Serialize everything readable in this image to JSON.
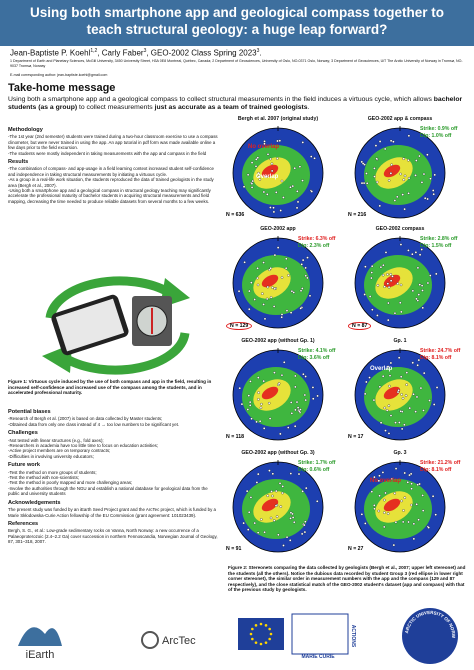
{
  "header": {
    "title": "Using both smartphone app and geological compass together to teach structural geology: a huge leap forward?",
    "authors": [
      {
        "name": "Jean-Baptiste P. Koehl",
        "sup": "1,2",
        "sep": ", "
      },
      {
        "name": "Carly Faber",
        "sup": "3",
        "sep": ", "
      },
      {
        "name": "GEO-2002 Class Spring 2023",
        "sup": "3",
        "sep": "."
      }
    ],
    "affiliations": "1 Department of Earth and Planetary Sciences, McGill University, 3450 University Street, H3A 0E8 Montreal, Québec, Canada; 2 Department of Geosciences, University of Oslo, NO-0371 Oslo, Norway; 3 Department of Geosciences, UiT The Arctic University of Norway in Tromsø, NO-9037 Tromsø, Norway",
    "email": "E-mail corresponding author: jean-baptiste.koehl@gmail.com"
  },
  "take_home": {
    "heading": "Take-home message",
    "runs": [
      {
        "text": "Using both a smartphone app and a geological compass to collect structural measurements in the field induces a virtuous cycle, which allows "
      },
      {
        "text": "bachelor students (as a group)",
        "bold": true
      },
      {
        "text": " to collect measurements "
      },
      {
        "text": "just as accurate as a team of trained geologists",
        "bold": true
      },
      {
        "text": "."
      }
    ]
  },
  "sections_top": [
    {
      "heading": "Methodology",
      "paragraphs": [
        "-The 1st year (2nd semester) students were trained during a two-hour classroom exercise to use a compass clinometer, but were never trained in using the app. An app tutorial in pdf form was made available online a few days prior to the field excursion.",
        "-The students were mostly independent in taking measurements with the app and compass in the field"
      ]
    },
    {
      "heading": "Results",
      "paragraphs": [
        "-The combination of compass- and app-usage in a field learning context increased student self-confidence and independence in taking structural measurements by initiating a virtuous cycle.",
        "-As a group in a real-life work situation, the students reproduced the data of trained geologists in the study area (Bergh et al., 2007).",
        "-Using both a smartphone app and a geological compass in structural geology teaching may significantly accelerate the professional maturity of bachelor students in acquiring structural measurements and field mapping, decreasing the time needed to produce reliable datasets from several months to a few weeks."
      ]
    }
  ],
  "figure1_caption": "Figure 1: Virtuous cycle induced by the use of both compass and app in the field, resulting in increased self-confidence and increased use of the compass among the students, and in accelerated professional maturity.",
  "sections_bottom": [
    {
      "heading": "Potential biases",
      "paragraphs": [
        "-Research of Bergh et al. (2007) is based on data collected by Master students;",
        "-Obtained data from only one class instead of 4 → too low numbers to be significant yet."
      ]
    },
    {
      "heading": "Challenges",
      "paragraphs": [
        "-Not tested with linear structures (e.g., fold axes);",
        "-Researchers in academia have too little time to focus on education activities;",
        "-Active project members are on temporary contracts;",
        "-Difficulties in involving university educators;"
      ]
    },
    {
      "heading": "Future work",
      "paragraphs": [
        "-Test the method on more groups of students;",
        "-Test the method with non-scientists;",
        "-Test the method in poorly mapped and more challenging areas;",
        "-Involve the authorities through the NGU and establish a national database for geological data from the public and university students"
      ]
    },
    {
      "heading": "Acknowledgements",
      "paragraphs": [
        "The present study was funded by an iEarth Seed Project grant and the ArcTec project, which is funded by a Marie Skłodowska-Curie Action fellowship of the EU Commission (grant agreement: 101023439)."
      ]
    },
    {
      "heading": "References",
      "paragraphs": [
        "Bergh, S. G., et al.: Low-grade sedimentary rocks on Vanna, North Norway: a new occurrence of a Palaeoproterozoic (2.4–2.2 Ga) cover succession in northern Fennoscandia, Norwegian Journal of Geology, 87, 301–318, 2007."
      ]
    }
  ],
  "stereonets": [
    {
      "title": "Bergh et al. 2007 (original study)",
      "n": "N = 636",
      "notes": [
        {
          "text": "No overlap",
          "color": "#e02020"
        },
        {
          "text": "Overlap",
          "color": "#ffffff"
        }
      ]
    },
    {
      "title": "GEO-2002 app & compass",
      "n": "N = 216",
      "strike": "Strike: 0.9% off",
      "strike_color": "#2a9a2a",
      "dip": "Dip: 1.0% off",
      "dip_color": "#2a9a2a"
    },
    {
      "title": "GEO-2002 app",
      "n": "N = 129",
      "n_circled": true,
      "strike": "Strike: 6.3% off",
      "strike_color": "#e02020",
      "dip": "Dip: 2.3% off",
      "dip_color": "#2a9a2a"
    },
    {
      "title": "GEO-2002 compass",
      "n": "N = 87",
      "n_circled": true,
      "strike": "Strike: 2.8% off",
      "strike_color": "#2a9a2a",
      "dip": "Dip: 1.5% off",
      "dip_color": "#2a9a2a"
    },
    {
      "title": "GEO-2002 app (without Gp. 1)",
      "n": "N = 118",
      "strike": "Strike: 4.1% off",
      "strike_color": "#2a9a2a",
      "dip": "Dip: 3.6% off",
      "dip_color": "#2a9a2a"
    },
    {
      "title": "Gp. 1",
      "n": "N = 17",
      "strike": "Strike: 24.7% off",
      "strike_color": "#e02020",
      "dip": "Dip: 8.1% off",
      "dip_color": "#e02020",
      "notes": [
        {
          "text": "Overlap",
          "color": "#ffffff"
        }
      ]
    },
    {
      "title": "GEO-2002 app (without Gp. 3)",
      "n": "N = 91",
      "strike": "Strike: 1.7% off",
      "strike_color": "#2a9a2a",
      "dip": "Dip: 0.6% off",
      "dip_color": "#2a9a2a"
    },
    {
      "title": "Gp. 3",
      "n": "N = 27",
      "strike": "Strike: 21.2% off",
      "strike_color": "#e02020",
      "dip": "Dip: 8.1% off",
      "dip_color": "#e02020",
      "notes": [
        {
          "text": "No overlap",
          "color": "#e02020"
        }
      ]
    }
  ],
  "figure2_caption": "Figure 2: Stereonets comparing the data collected by geologists (Bergh et al., 2007; upper left stereonet) and the students (all the others). Notice the dubious data recorded by student Group 3 (red ellipse in lower right corner stereonet), the similar order in measurement numbers with the app and the compass (129 and 87 respectively), and the close statistical match of the GEO-2002 student's dataset (app and compass) with that of the previous study by geologists.",
  "footer": {
    "iearth": "iEarth",
    "arctec": "ArcTec",
    "marie_curie": "MARIE CURIE",
    "actions": "ACTIONS",
    "uit": "THE ARCTIC UNIVERSITY OF NORWAY"
  }
}
